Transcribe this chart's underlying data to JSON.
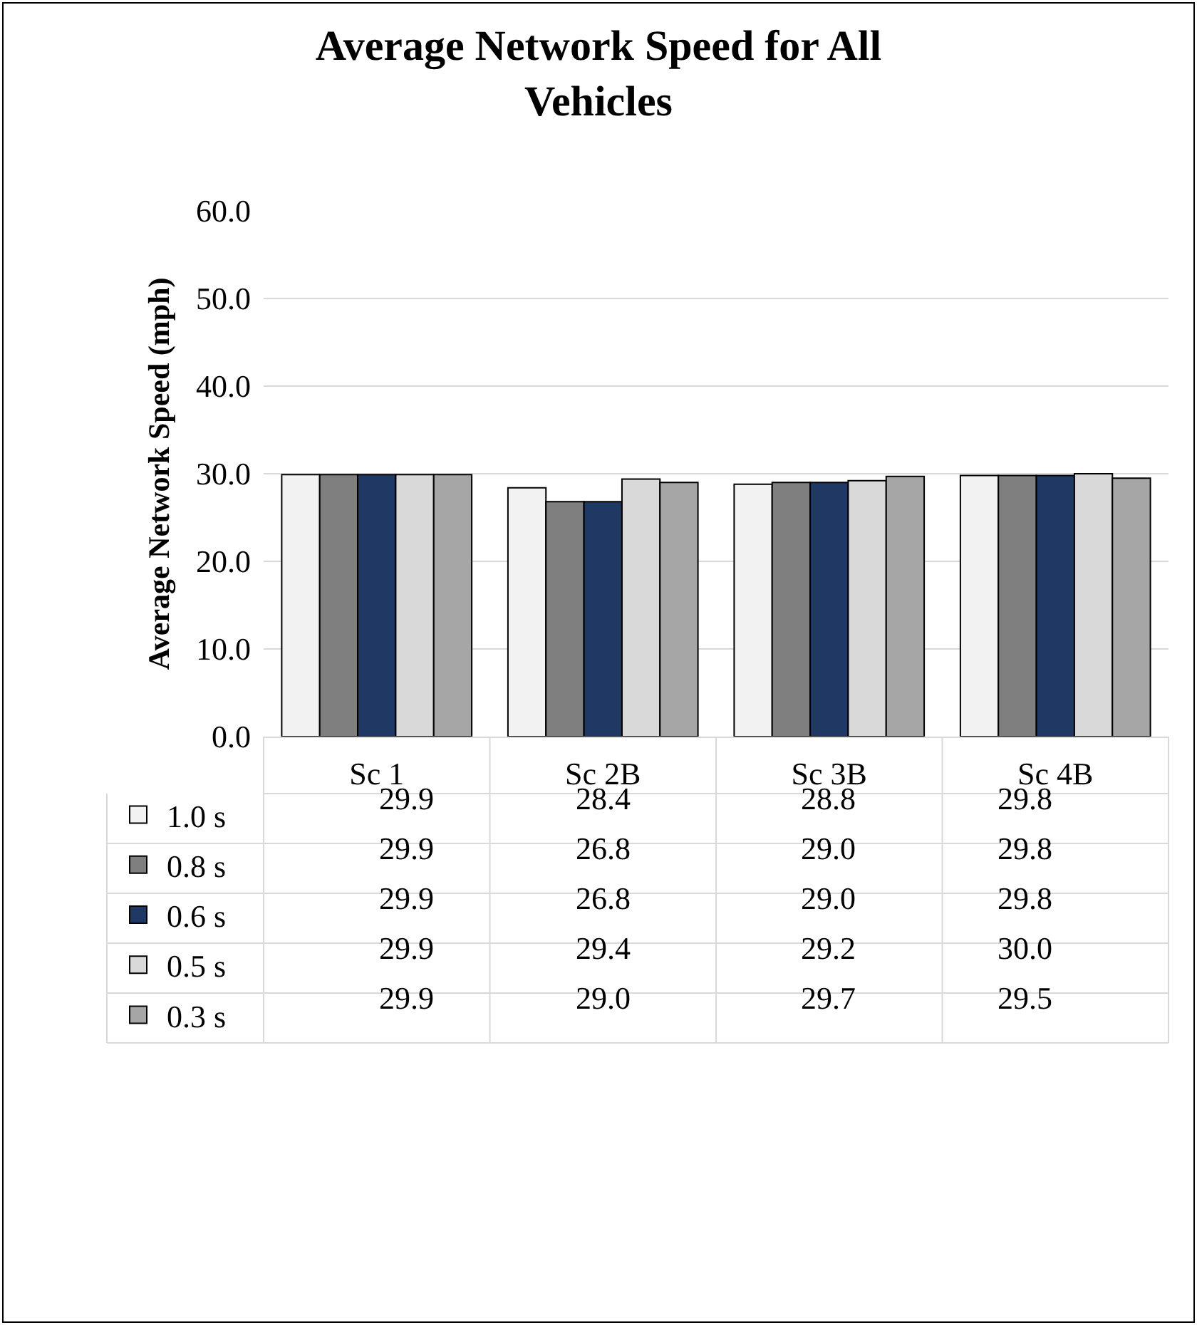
{
  "chart_data": {
    "type": "bar",
    "title": "Average Network Speed for All Vehicles",
    "ylabel": "Average Network Speed (mph)",
    "categories": [
      "Sc 1",
      "Sc 2B",
      "Sc 3B",
      "Sc 4B"
    ],
    "series": [
      {
        "name": "1.0 s",
        "color": "#f2f2f2",
        "values": [
          29.9,
          28.4,
          28.8,
          29.8
        ],
        "value_labels": [
          "29.9",
          "28.4",
          "28.8",
          "29.8"
        ]
      },
      {
        "name": "0.8 s",
        "color": "#7f7f7f",
        "values": [
          29.9,
          26.8,
          29.0,
          29.8
        ],
        "value_labels": [
          "29.9",
          "26.8",
          "29.0",
          "29.8"
        ]
      },
      {
        "name": "0.6 s",
        "color": "#1f3864",
        "values": [
          29.9,
          26.8,
          29.0,
          29.8
        ],
        "value_labels": [
          "29.9",
          "26.8",
          "29.0",
          "29.8"
        ]
      },
      {
        "name": "0.5 s",
        "color": "#d9d9d9",
        "values": [
          29.9,
          29.4,
          29.2,
          30.0
        ],
        "value_labels": [
          "29.9",
          "29.4",
          "29.2",
          "30.0"
        ]
      },
      {
        "name": "0.3 s",
        "color": "#a6a6a6",
        "values": [
          29.9,
          29.0,
          29.7,
          29.5
        ],
        "value_labels": [
          "29.9",
          "29.0",
          "29.7",
          "29.5"
        ]
      }
    ],
    "ylim": [
      0,
      60
    ],
    "yticks": [
      {
        "value": 0,
        "label": "0.0"
      },
      {
        "value": 10,
        "label": "10.0"
      },
      {
        "value": 20,
        "label": "20.0"
      },
      {
        "value": 30,
        "label": "30.0"
      },
      {
        "value": 40,
        "label": "40.0"
      },
      {
        "value": 50,
        "label": "50.0"
      },
      {
        "value": 60,
        "label": "60.0"
      }
    ],
    "grid": "y",
    "legend": "bottom"
  }
}
